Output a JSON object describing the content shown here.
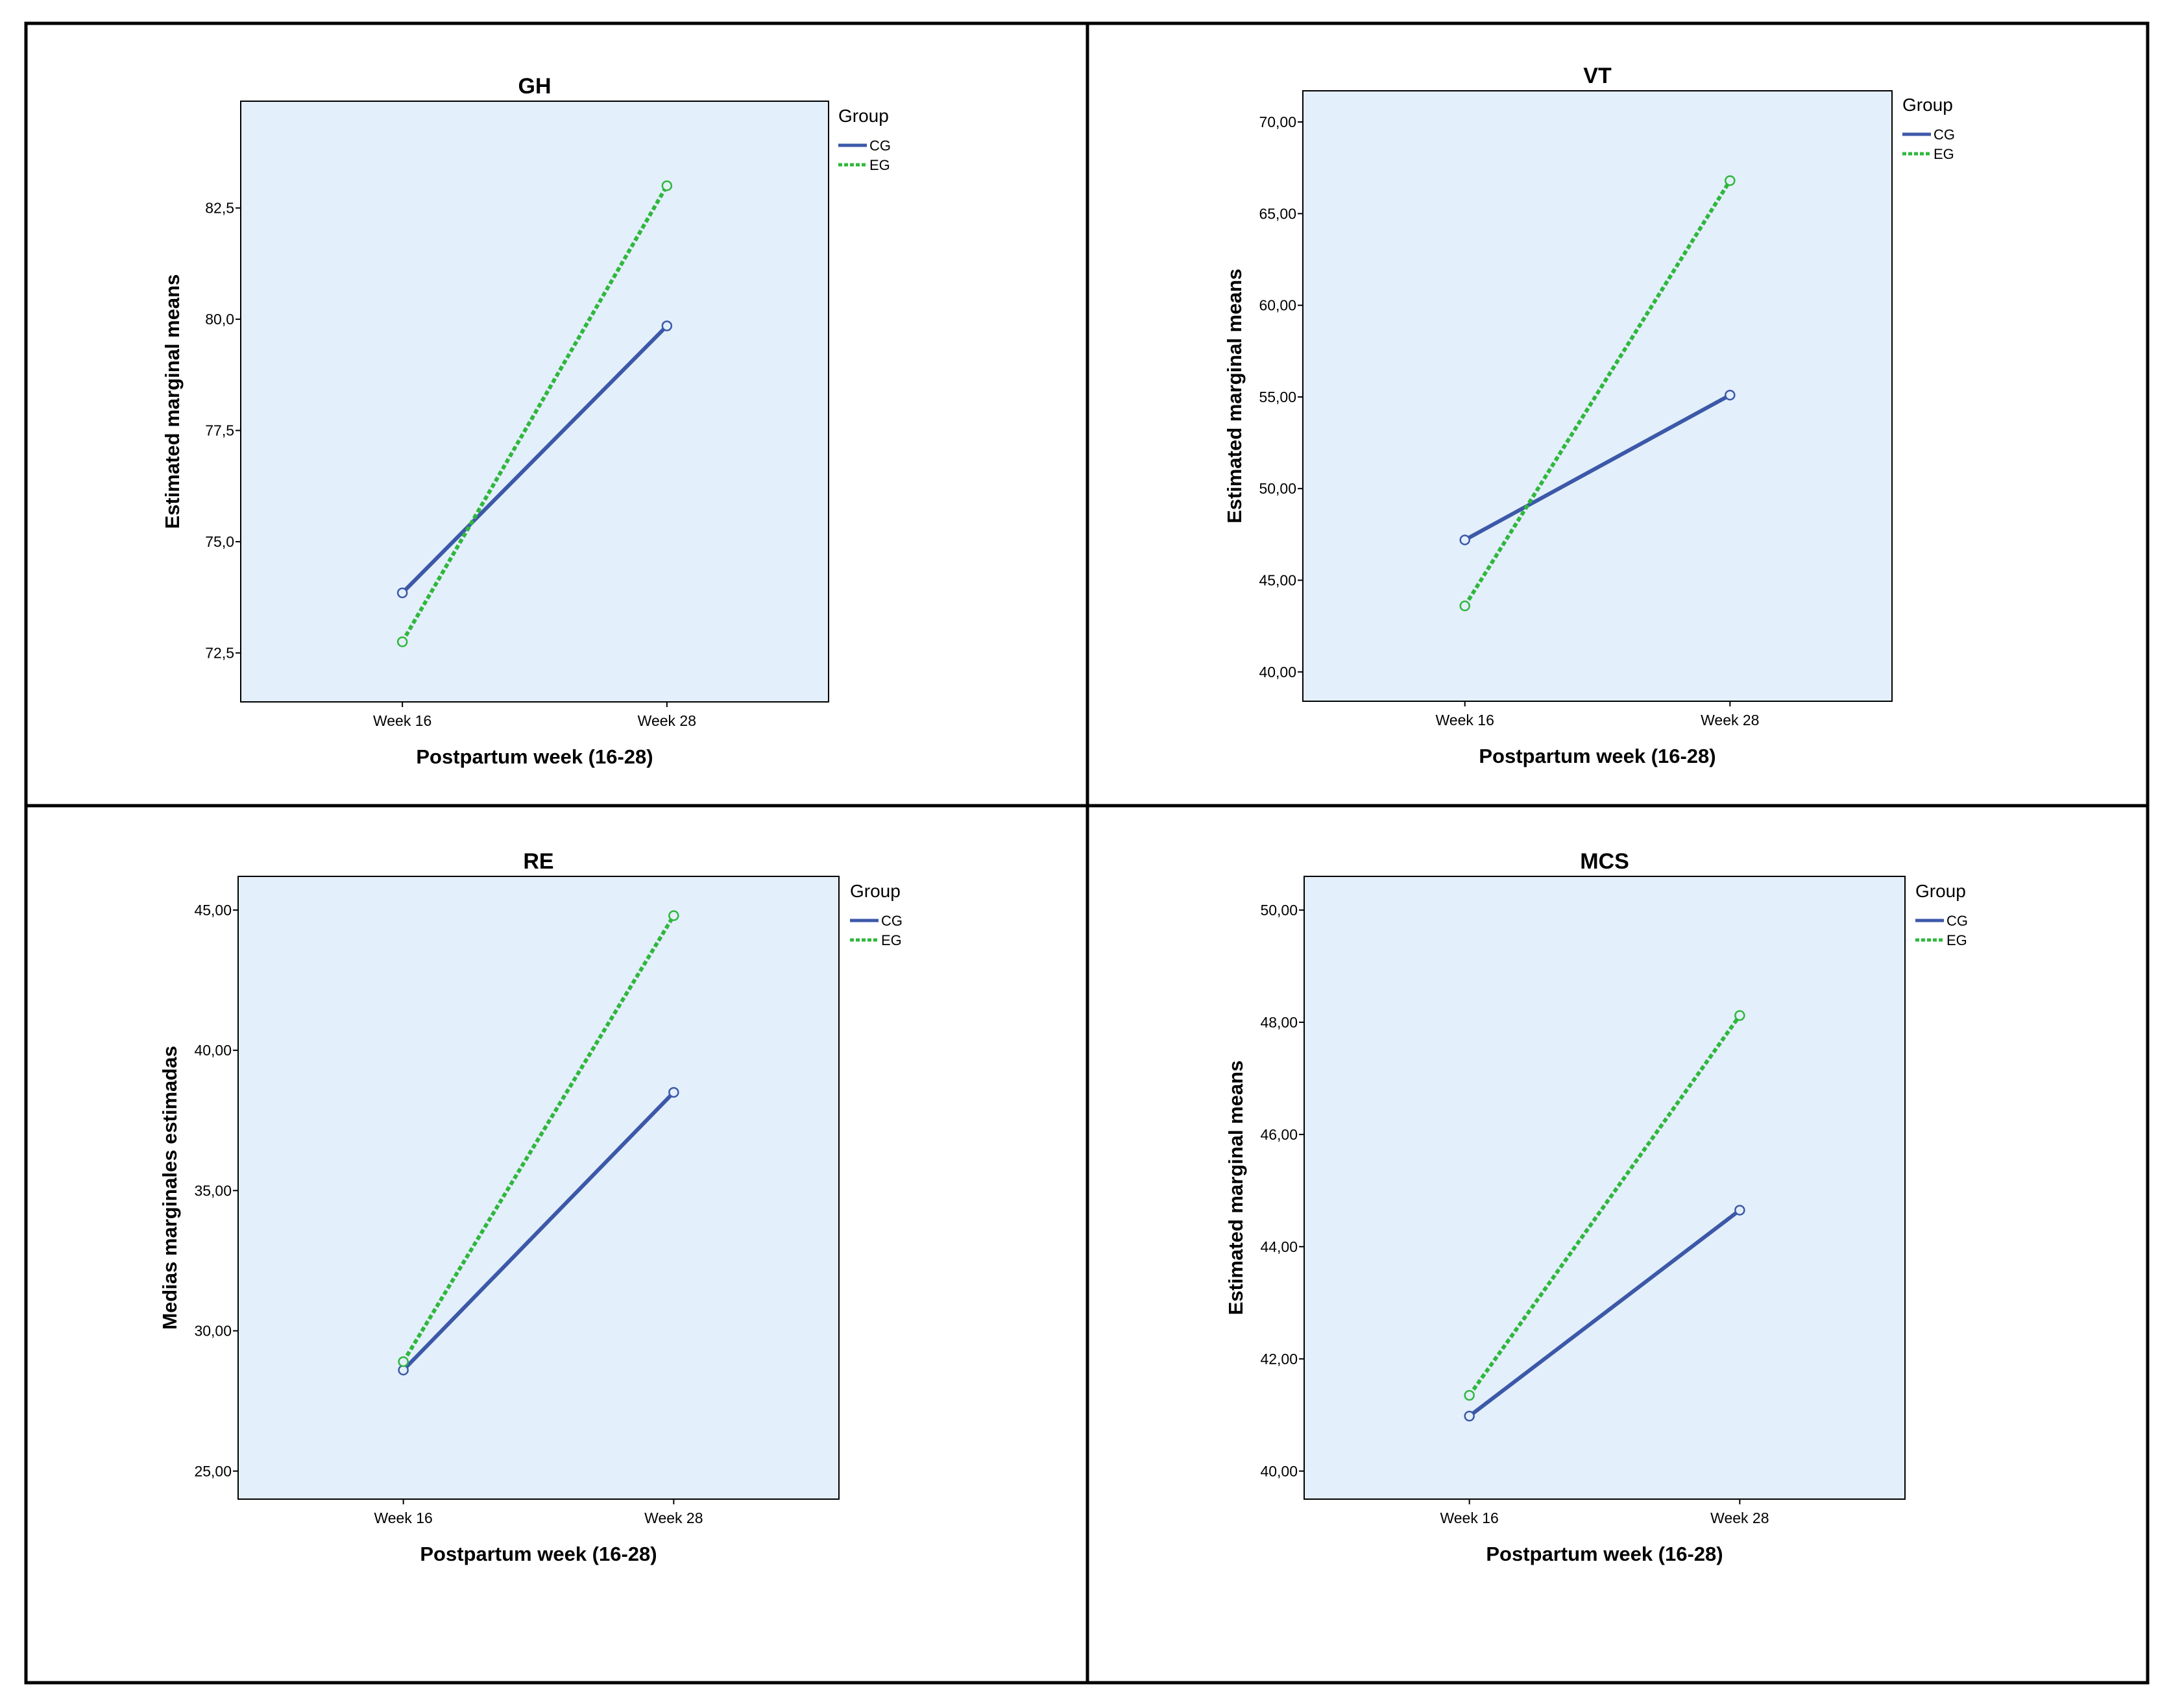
{
  "legend": {
    "title": "Group",
    "entries": [
      {
        "name": "CG",
        "color": "#3c58a8",
        "dash": "solid"
      },
      {
        "name": "EG",
        "color": "#2fb73c",
        "dash": "dotted"
      }
    ]
  },
  "chart_data": [
    {
      "type": "line",
      "title": "GH",
      "xlabel": "Postpartum week (16-28)",
      "ylabel": "Estimated marginal means",
      "categories": [
        "Week 16",
        "Week 28"
      ],
      "ylim": [
        71.4,
        84.9
      ],
      "yticks": [
        72.5,
        75.0,
        77.5,
        80.0,
        82.5
      ],
      "ytick_labels": [
        "72,5",
        "75,0",
        "77,5",
        "80,0",
        "82,5"
      ],
      "legend_position": "right",
      "series": [
        {
          "name": "CG",
          "values": [
            73.85,
            79.85
          ]
        },
        {
          "name": "EG",
          "values": [
            72.75,
            83.0
          ]
        }
      ]
    },
    {
      "type": "line",
      "title": "VT",
      "xlabel": "Postpartum week (16-28)",
      "ylabel": "Estimated marginal means",
      "categories": [
        "Week 16",
        "Week 28"
      ],
      "ylim": [
        38.4,
        71.7
      ],
      "yticks": [
        40,
        45,
        50,
        55,
        60,
        65,
        70
      ],
      "ytick_labels": [
        "40,00",
        "45,00",
        "50,00",
        "55,00",
        "60,00",
        "65,00",
        "70,00"
      ],
      "legend_position": "right",
      "series": [
        {
          "name": "CG",
          "values": [
            47.2,
            55.1
          ]
        },
        {
          "name": "EG",
          "values": [
            43.6,
            66.8
          ]
        }
      ]
    },
    {
      "type": "line",
      "title": "RE",
      "xlabel": "Postpartum week (16-28)",
      "ylabel": "Medias marginales estimadas",
      "categories": [
        "Week 16",
        "Week 28"
      ],
      "ylim": [
        24.0,
        46.2
      ],
      "yticks": [
        25,
        30,
        35,
        40,
        45
      ],
      "ytick_labels": [
        "25,00",
        "30,00",
        "35,00",
        "40,00",
        "45,00"
      ],
      "legend_position": "right",
      "series": [
        {
          "name": "CG",
          "values": [
            28.6,
            38.5
          ]
        },
        {
          "name": "EG",
          "values": [
            28.9,
            44.8
          ]
        }
      ]
    },
    {
      "type": "line",
      "title": "MCS",
      "xlabel": "Postpartum week (16-28)",
      "ylabel": "Estimated marginal means",
      "categories": [
        "Week 16",
        "Week 28"
      ],
      "ylim": [
        39.5,
        50.6
      ],
      "yticks": [
        40,
        42,
        44,
        46,
        48,
        50
      ],
      "ytick_labels": [
        "40,00",
        "42,00",
        "44,00",
        "46,00",
        "48,00",
        "50,00"
      ],
      "legend_position": "right",
      "series": [
        {
          "name": "CG",
          "values": [
            40.98,
            44.65
          ]
        },
        {
          "name": "EG",
          "values": [
            41.35,
            48.12
          ]
        }
      ]
    }
  ]
}
